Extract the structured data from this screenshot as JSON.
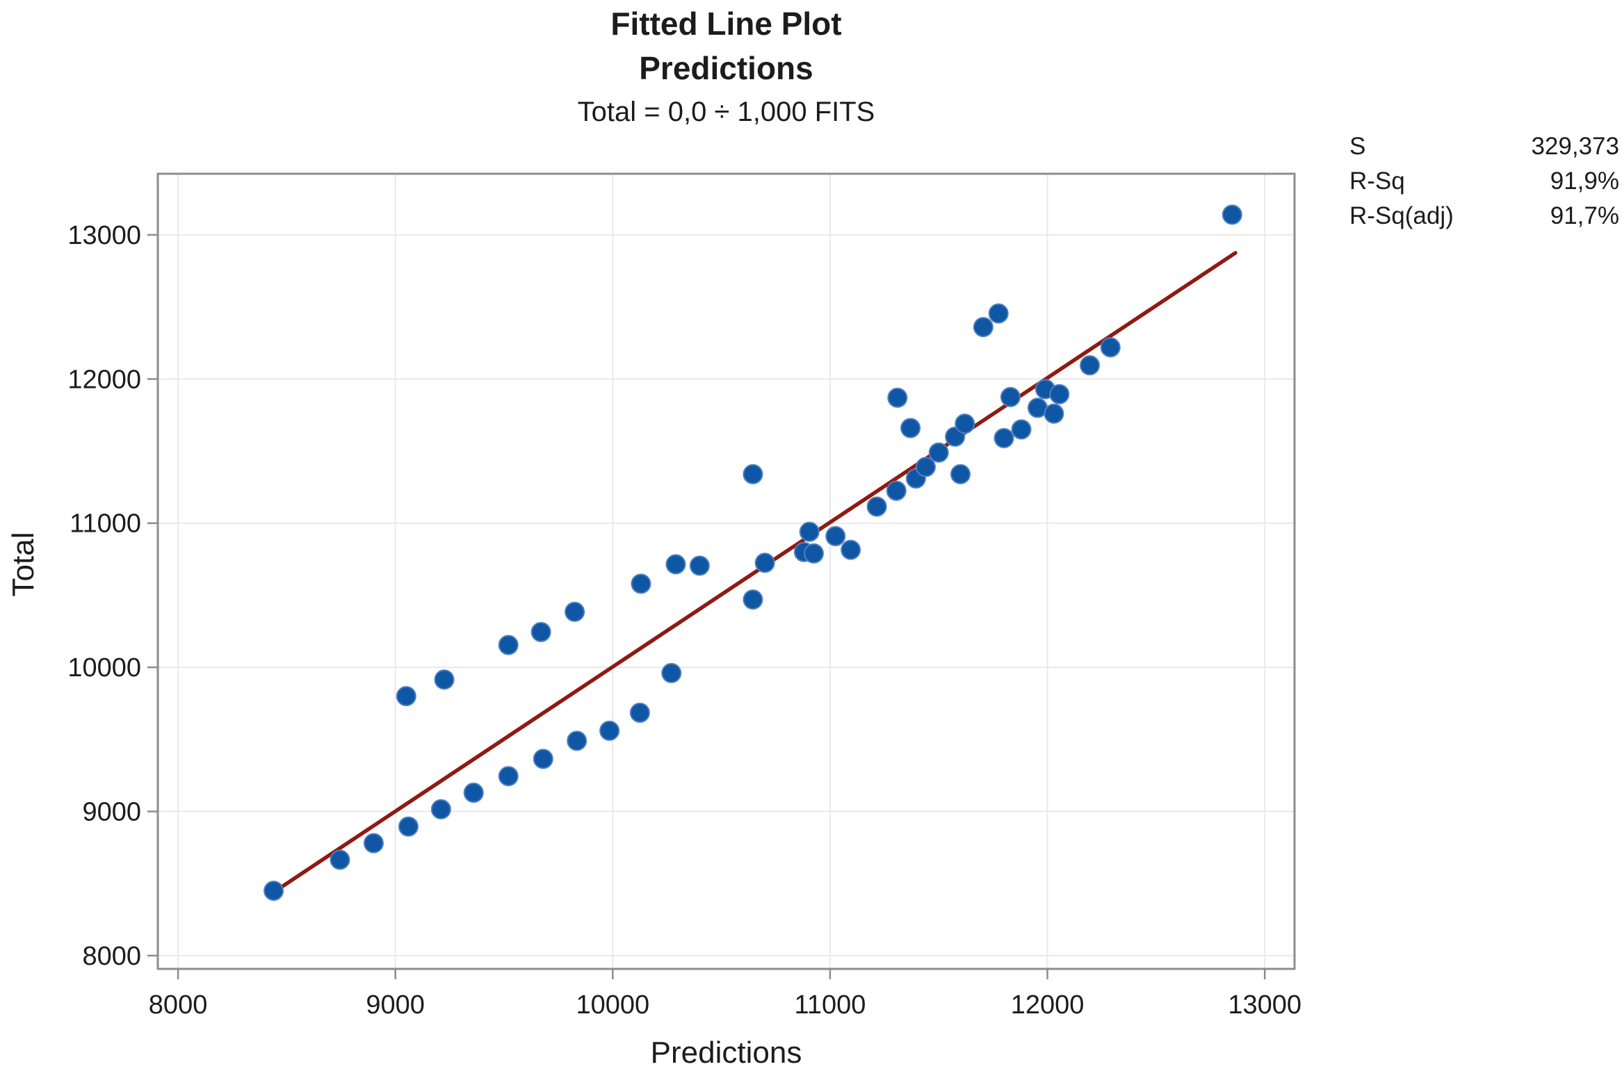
{
  "figure": {
    "title_line1": "Fitted Line Plot",
    "title_line2": "Predictions",
    "equation": "Total = 0,0 ÷ 1,000 FITS"
  },
  "stats": {
    "rows": [
      {
        "label": "S",
        "value": "329,373"
      },
      {
        "label": "R-Sq",
        "value": "91,9%"
      },
      {
        "label": "R-Sq(adj)",
        "value": "91,7%"
      }
    ]
  },
  "chart_data": {
    "type": "scatter",
    "title": "Fitted Line Plot",
    "subtitle": "Predictions",
    "equation": "Total = 0,0 ÷ 1,000 FITS",
    "xlabel": "Predictions",
    "ylabel": "Total",
    "xlim": [
      7907,
      13137
    ],
    "ylim": [
      7908,
      13424
    ],
    "xticks": [
      8000,
      9000,
      10000,
      11000,
      12000,
      13000
    ],
    "yticks": [
      8000,
      9000,
      10000,
      11000,
      12000,
      13000
    ],
    "grid": true,
    "legend_position": "top-right-outside",
    "stats_legend": [
      [
        "S",
        "329,373"
      ],
      [
        "R-Sq",
        "91,9%"
      ],
      [
        "R-Sq(adj)",
        "91,7%"
      ]
    ],
    "fit_line": {
      "x1": 8455,
      "y1": 8455,
      "x2": 12865,
      "y2": 12875
    },
    "points": [
      [
        8440,
        8450
      ],
      [
        8745,
        8665
      ],
      [
        8900,
        8780
      ],
      [
        9060,
        8895
      ],
      [
        9210,
        9015
      ],
      [
        9360,
        9130
      ],
      [
        9520,
        9245
      ],
      [
        9680,
        9365
      ],
      [
        9835,
        9490
      ],
      [
        9985,
        9560
      ],
      [
        10125,
        9685
      ],
      [
        10270,
        9960
      ],
      [
        9050,
        9800
      ],
      [
        9225,
        9915
      ],
      [
        9520,
        10155
      ],
      [
        9670,
        10245
      ],
      [
        9825,
        10385
      ],
      [
        10130,
        10580
      ],
      [
        10290,
        10715
      ],
      [
        10400,
        10705
      ],
      [
        10645,
        10470
      ],
      [
        10645,
        11340
      ],
      [
        10700,
        10725
      ],
      [
        10905,
        10940
      ],
      [
        10880,
        10800
      ],
      [
        10925,
        10790
      ],
      [
        11025,
        10910
      ],
      [
        11095,
        10815
      ],
      [
        11215,
        11115
      ],
      [
        11305,
        11225
      ],
      [
        11395,
        11310
      ],
      [
        11440,
        11390
      ],
      [
        11500,
        11490
      ],
      [
        11575,
        11600
      ],
      [
        11620,
        11690
      ],
      [
        11310,
        11870
      ],
      [
        11370,
        11660
      ],
      [
        11600,
        11340
      ],
      [
        11800,
        11590
      ],
      [
        11880,
        11650
      ],
      [
        11830,
        11875
      ],
      [
        11955,
        11800
      ],
      [
        11990,
        11930
      ],
      [
        12030,
        11760
      ],
      [
        12055,
        11895
      ],
      [
        11705,
        12360
      ],
      [
        11775,
        12455
      ],
      [
        12195,
        12095
      ],
      [
        12290,
        12220
      ],
      [
        12850,
        13140
      ]
    ],
    "colors": {
      "marker": "#0f57a4",
      "marker_edge": "#4f7fc0",
      "fit_line": "#8f1a12",
      "grid": "#e9e9e9",
      "frame": "#8c8c8c",
      "text": "#1c1c1c"
    }
  }
}
